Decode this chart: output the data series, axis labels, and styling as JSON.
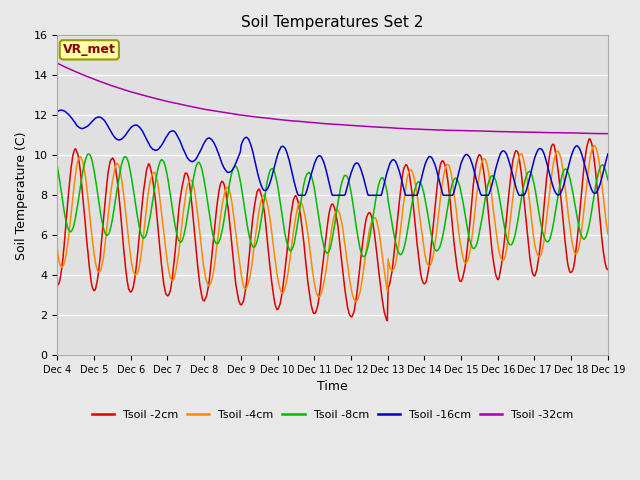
{
  "title": "Soil Temperatures Set 2",
  "xlabel": "Time",
  "ylabel": "Soil Temperature (C)",
  "ylim": [
    0,
    16
  ],
  "yticks": [
    0,
    2,
    4,
    6,
    8,
    10,
    12,
    14,
    16
  ],
  "x_tick_labels": [
    "Dec 4",
    "Dec 5",
    "Dec 6",
    "Dec 7",
    "Dec 8",
    "Dec 9",
    "Dec 10",
    "Dec 11",
    "Dec 12",
    "Dec 13",
    "Dec 14",
    "Dec 15",
    "Dec 16",
    "Dec 17",
    "Dec 18",
    "Dec 19"
  ],
  "bg_color": "#e8e8e8",
  "plot_bg_color": "#e0e0e0",
  "series_colors": [
    "#dd0000",
    "#ff8800",
    "#00bb00",
    "#0000cc",
    "#aa00aa"
  ],
  "series_labels": [
    "Tsoil -2cm",
    "Tsoil -4cm",
    "Tsoil -8cm",
    "Tsoil -16cm",
    "Tsoil -32cm"
  ],
  "annotation_text": "VR_met",
  "annotation_color": "#8b0000",
  "annotation_bg": "#ffffaa",
  "n_points": 720
}
